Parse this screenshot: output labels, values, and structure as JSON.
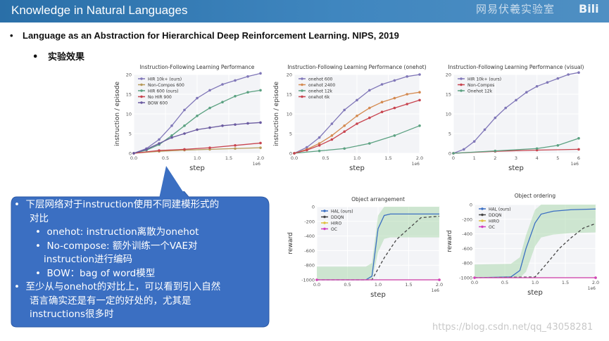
{
  "header": {
    "title": "Knowledge in Natural Languages",
    "logo_text": "网易伏羲实验室",
    "logo_sub": "伏羲实验室",
    "logo_right": "Bili"
  },
  "content": {
    "bullet_main": "Language as an Abstraction for Hierarchical Deep Reinforcement Learning. NIPS, 2019",
    "bullet_sub": "实验效果",
    "bubble_lines": [
      "下层网络对于instruction使用不同建模形式的",
      "对比",
      "onehot: instruction离散为onehot",
      "No-compose: 额外训练一个VAE对",
      "instruction进行编码",
      "BOW：bag of word模型",
      "至少从与onehot的对比上，可以看到引入自然",
      "语言确实还是有一定的好处的，尤其是",
      "instructions很多时"
    ]
  },
  "watermark": "https://blog.csdn.net/qq_43058281",
  "chart_data": [
    {
      "type": "line",
      "title": "Instruction-Following Learning Performance",
      "xlabel": "step",
      "ylabel": "instruction / episode",
      "x_scale_label": "1e6",
      "xlim": [
        0,
        2.0
      ],
      "ylim": [
        0,
        20
      ],
      "xticks": [
        "0.0",
        "0.5",
        "1.0",
        "1.5",
        "2.0"
      ],
      "yticks": [
        "0",
        "5",
        "10",
        "15",
        "20"
      ],
      "legend_position": "top-left",
      "series": [
        {
          "name": "HIR 10k+ (ours)",
          "color": "#8077b8",
          "x": [
            0,
            0.2,
            0.4,
            0.6,
            0.8,
            1.0,
            1.2,
            1.4,
            1.6,
            1.8,
            2.0
          ],
          "values": [
            0,
            1.2,
            3.5,
            7,
            11,
            14,
            16,
            17.5,
            18.5,
            19.5,
            20.3
          ]
        },
        {
          "name": "Non-Compos 600",
          "color": "#b79a5a",
          "x": [
            0,
            0.4,
            0.8,
            1.2,
            1.6,
            2.0
          ],
          "values": [
            0,
            0.5,
            0.8,
            1.0,
            1.2,
            1.4
          ]
        },
        {
          "name": "HIR 600 (ours)",
          "color": "#5ba181",
          "x": [
            0,
            0.2,
            0.4,
            0.6,
            0.8,
            1.0,
            1.2,
            1.4,
            1.6,
            1.8,
            2.0
          ],
          "values": [
            0,
            0.8,
            2.2,
            4.5,
            7,
            9.5,
            11.5,
            13,
            14.5,
            15.5,
            16
          ]
        },
        {
          "name": "No HIR 900",
          "color": "#c8444f",
          "x": [
            0,
            0.4,
            0.8,
            1.2,
            1.6,
            2.0
          ],
          "values": [
            0,
            0.7,
            1.0,
            1.4,
            2.0,
            2.6
          ]
        },
        {
          "name": "BOW 600",
          "color": "#6a5aa0",
          "x": [
            0,
            0.2,
            0.4,
            0.6,
            0.8,
            1.0,
            1.2,
            1.4,
            1.6,
            1.8,
            2.0
          ],
          "values": [
            0,
            1.0,
            2.5,
            4,
            5,
            6,
            6.5,
            7,
            7.3,
            7.6,
            7.8
          ]
        }
      ]
    },
    {
      "type": "line",
      "title": "Instruction-Following Learning Performance (onehot)",
      "xlabel": "step",
      "ylabel": "instruction / episode",
      "x_scale_label": "1e6",
      "xlim": [
        0,
        2.0
      ],
      "ylim": [
        0,
        20
      ],
      "xticks": [
        "0.0",
        "0.5",
        "1.0",
        "1.5",
        "2.0"
      ],
      "yticks": [
        "0",
        "5",
        "10",
        "15",
        "20"
      ],
      "legend_position": "top-left",
      "series": [
        {
          "name": "onehot 600",
          "color": "#8077b8",
          "x": [
            0,
            0.2,
            0.4,
            0.6,
            0.8,
            1.0,
            1.2,
            1.4,
            1.6,
            1.8,
            2.0
          ],
          "values": [
            0,
            1.5,
            4,
            7.5,
            11,
            13.5,
            16,
            17.5,
            18.5,
            19.5,
            20
          ]
        },
        {
          "name": "onehot 2400",
          "color": "#d48a50",
          "x": [
            0,
            0.2,
            0.4,
            0.6,
            0.8,
            1.0,
            1.2,
            1.4,
            1.6,
            1.8,
            2.0
          ],
          "values": [
            0,
            1,
            2.5,
            4.5,
            7,
            9.5,
            11.5,
            13,
            14,
            15,
            15.5
          ]
        },
        {
          "name": "onehot 12k",
          "color": "#5ba181",
          "x": [
            0,
            0.4,
            0.8,
            1.2,
            1.6,
            2.0
          ],
          "values": [
            0,
            0.6,
            1.2,
            2.5,
            4.5,
            7
          ]
        },
        {
          "name": "onehot 6k",
          "color": "#c8444f",
          "x": [
            0,
            0.2,
            0.4,
            0.6,
            0.8,
            1.0,
            1.2,
            1.4,
            1.6,
            1.8,
            2.0
          ],
          "values": [
            0,
            0.8,
            2,
            3.5,
            5.5,
            7.5,
            9,
            10.5,
            11.5,
            12.5,
            13.5
          ]
        }
      ]
    },
    {
      "type": "line",
      "title": "Instruction-Following Learning Performance (visual)",
      "xlabel": "step",
      "ylabel": "",
      "x_scale_label": "1e6",
      "xlim": [
        0,
        6
      ],
      "ylim": [
        0,
        20
      ],
      "xticks": [
        "0",
        "1",
        "2",
        "3",
        "4",
        "5",
        "6"
      ],
      "yticks": [
        "0",
        "5",
        "10",
        "15",
        "20"
      ],
      "legend_position": "top-left",
      "series": [
        {
          "name": "HIR 10k+ (ours)",
          "color": "#8077b8",
          "x": [
            0,
            0.5,
            1,
            1.5,
            2,
            2.5,
            3,
            3.5,
            4,
            4.5,
            5,
            5.5,
            6
          ],
          "values": [
            0,
            1,
            3,
            6,
            9,
            11.5,
            13.5,
            15.5,
            17,
            18,
            19,
            20,
            20.5
          ]
        },
        {
          "name": "Non-Compos",
          "color": "#c8444f",
          "x": [
            0,
            2,
            4,
            6
          ],
          "values": [
            0,
            0.5,
            0.8,
            1.0
          ]
        },
        {
          "name": "Onehot 12k",
          "color": "#5ba181",
          "x": [
            0,
            2,
            4,
            5,
            6
          ],
          "values": [
            0,
            0.6,
            1.2,
            2,
            3.8
          ]
        }
      ]
    },
    {
      "type": "line",
      "title": "Object arrangement",
      "xlabel": "step",
      "ylabel": "reward",
      "x_scale_label": "1e6",
      "xlim": [
        0,
        2.0
      ],
      "ylim": [
        -1000,
        0
      ],
      "xticks": [
        "0.0",
        "0.5",
        "1.0",
        "1.5",
        "2.0"
      ],
      "yticks": [
        "-1000",
        "-800",
        "-600",
        "-400",
        "-200",
        "0"
      ],
      "legend_position": "top-left",
      "series": [
        {
          "name": "HAL (ours)",
          "color": "#3b6fc2",
          "x": [
            0,
            0.8,
            0.9,
            1.0,
            1.1,
            1.2,
            1.5,
            2.0
          ],
          "values": [
            -1000,
            -1000,
            -950,
            -300,
            -120,
            -100,
            -100,
            -100
          ]
        },
        {
          "name": "DDQN",
          "color": "#444444",
          "x": [
            0,
            0.9,
            1.1,
            1.3,
            1.5,
            1.7,
            2.0
          ],
          "values": [
            -1000,
            -1000,
            -700,
            -450,
            -300,
            -150,
            -130
          ]
        },
        {
          "name": "HIRO",
          "color": "#e0c040",
          "x": [
            0,
            2.0
          ],
          "values": [
            -1000,
            -1000
          ]
        },
        {
          "name": "OC",
          "color": "#d040c0",
          "x": [
            0,
            2.0
          ],
          "values": [
            -1000,
            -1000
          ]
        }
      ]
    },
    {
      "type": "line",
      "title": "Object ordering",
      "xlabel": "step",
      "ylabel": "reward",
      "x_scale_label": "1e6",
      "xlim": [
        0,
        2.0
      ],
      "ylim": [
        -1000,
        0
      ],
      "xticks": [
        "0.0",
        "0.5",
        "1.0",
        "1.5",
        "2.0"
      ],
      "yticks": [
        "-1000",
        "-800",
        "-600",
        "-400",
        "-200",
        "0"
      ],
      "legend_position": "top-left",
      "series": [
        {
          "name": "HAL (ours)",
          "color": "#3b6fc2",
          "x": [
            0,
            0.6,
            0.75,
            0.85,
            1.0,
            1.1,
            1.3,
            1.6,
            2.0
          ],
          "values": [
            -1000,
            -990,
            -900,
            -600,
            -250,
            -130,
            -90,
            -70,
            -60
          ]
        },
        {
          "name": "DDQN",
          "color": "#444444",
          "x": [
            0,
            1.0,
            1.2,
            1.4,
            1.6,
            1.8,
            2.0
          ],
          "values": [
            -1000,
            -990,
            -800,
            -600,
            -450,
            -320,
            -260
          ]
        },
        {
          "name": "HIRO",
          "color": "#e0c040",
          "x": [
            0,
            2.0
          ],
          "values": [
            -1000,
            -1000
          ]
        },
        {
          "name": "OC",
          "color": "#d040c0",
          "x": [
            0,
            2.0
          ],
          "values": [
            -1000,
            -1000
          ]
        }
      ]
    }
  ]
}
